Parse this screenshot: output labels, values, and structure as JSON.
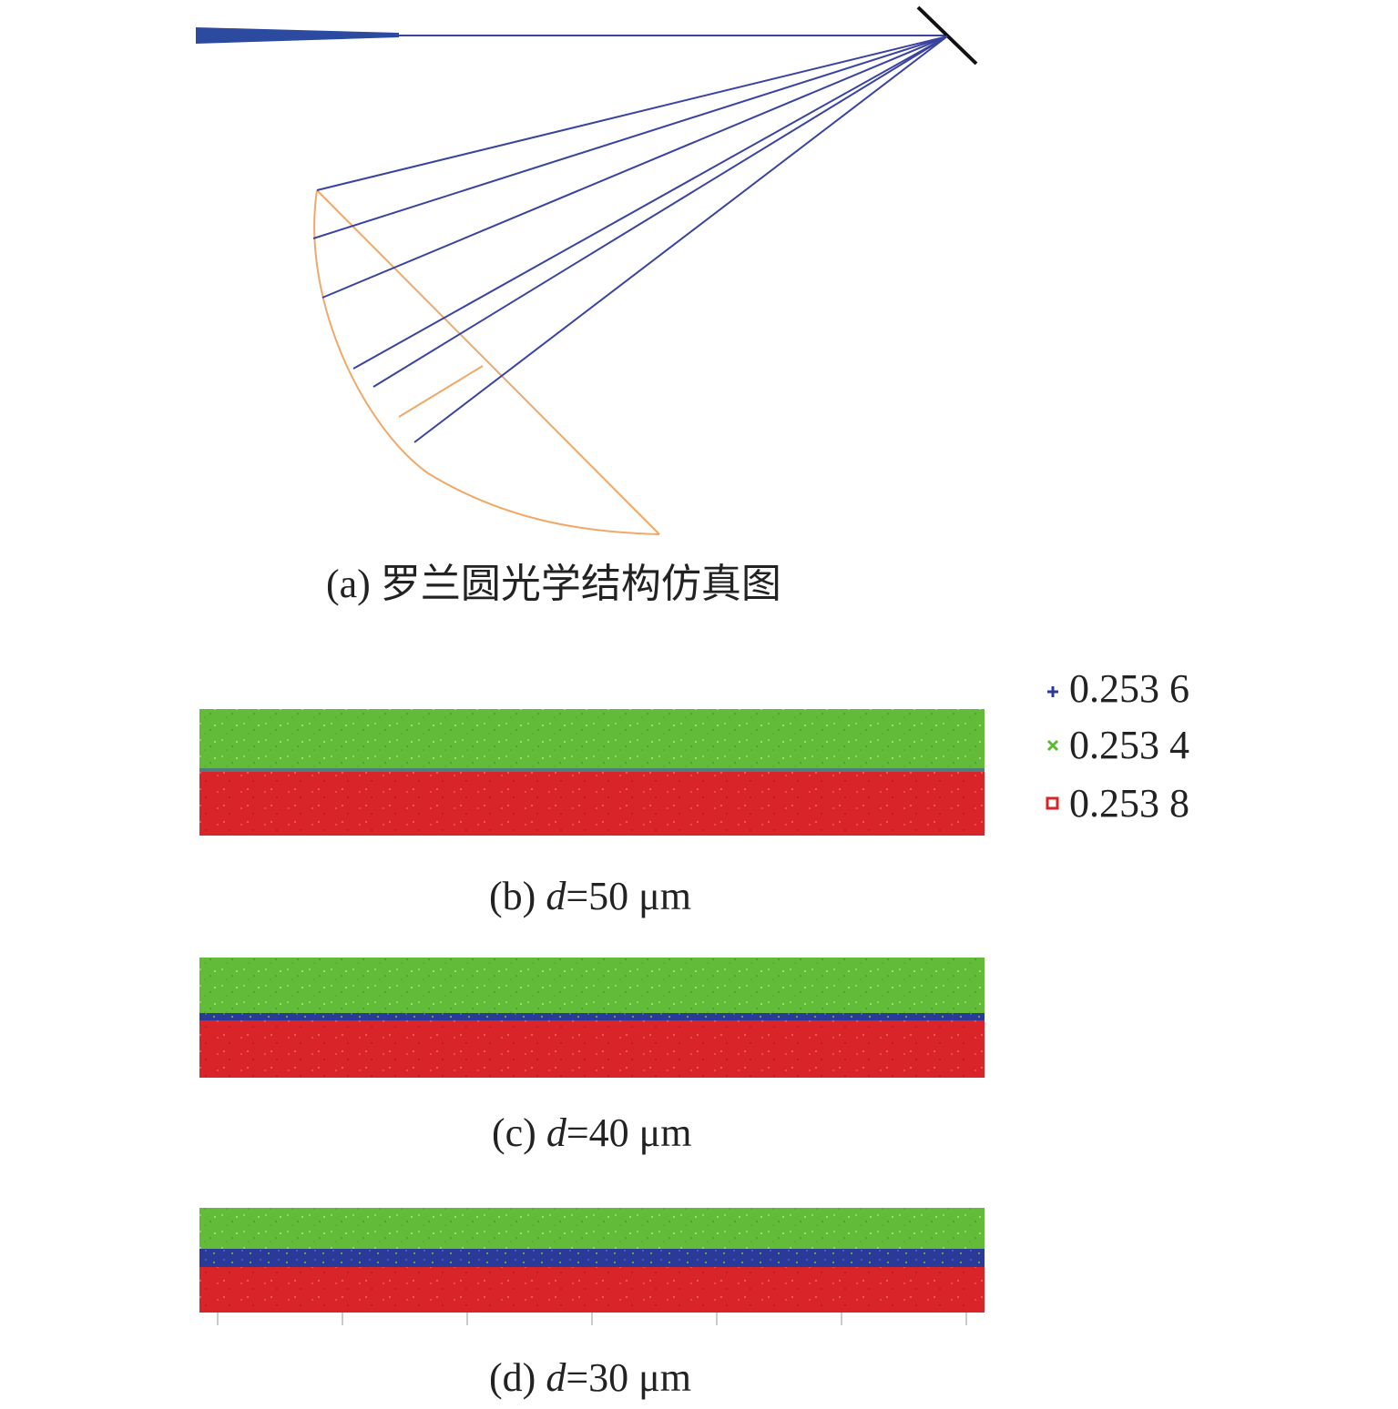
{
  "figure": {
    "panel_a": {
      "caption": "(a) 罗兰圆光学结构仿真图"
    },
    "panel_b": {
      "prefix": "(b) ",
      "var": "d",
      "rest": "=50 μm"
    },
    "panel_c": {
      "prefix": "(c) ",
      "var": "d",
      "rest": "=40 μm"
    },
    "panel_d": {
      "prefix": "(d) ",
      "var": "d",
      "rest": "=30 μm"
    }
  },
  "legend": [
    {
      "label": "0.253 6",
      "marker": "plus",
      "color": "#2b3a99"
    },
    {
      "label": "0.253 4",
      "marker": "cross",
      "color": "#5cb934"
    },
    {
      "label": "0.253 8",
      "marker": "square",
      "color": "#d9242a"
    }
  ],
  "colors": {
    "ray": "#3a43a0",
    "beam": "#2b4aa0",
    "rowland_circle": "#f0a868",
    "grating": "#111111",
    "green": "#63bb3a",
    "blue": "#2b3a99",
    "red": "#d9242a"
  }
}
